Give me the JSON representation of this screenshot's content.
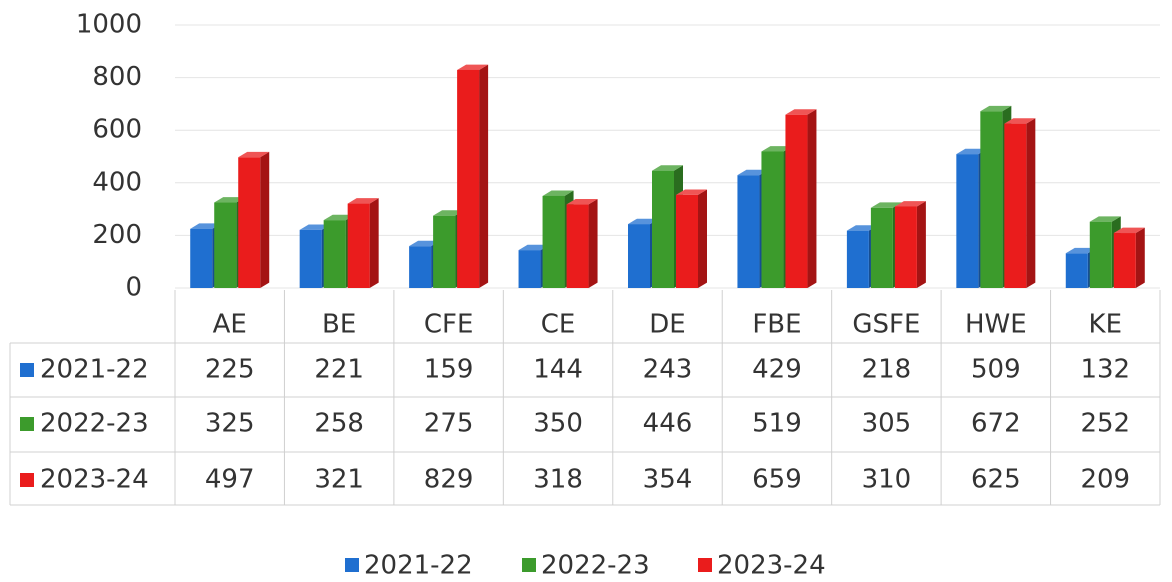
{
  "chart_data": {
    "type": "bar3d",
    "categories": [
      "AE",
      "BE",
      "CFE",
      "CE",
      "DE",
      "FBE",
      "GSFE",
      "HWE",
      "KE"
    ],
    "series": [
      {
        "name": "2021-22",
        "color": "#1f6fd0",
        "values": [
          225,
          221,
          159,
          144,
          243,
          429,
          218,
          509,
          132
        ]
      },
      {
        "name": "2022-23",
        "color": "#3c9b2c",
        "values": [
          325,
          258,
          275,
          350,
          446,
          519,
          305,
          672,
          252
        ]
      },
      {
        "name": "2023-24",
        "color": "#ea1c1c",
        "values": [
          497,
          321,
          829,
          318,
          354,
          659,
          310,
          625,
          209
        ]
      }
    ],
    "ylim": [
      0,
      1000
    ],
    "yticks": [
      0,
      200,
      400,
      600,
      800,
      1000
    ],
    "grid": true,
    "data_table": true,
    "legend": "bottom"
  }
}
